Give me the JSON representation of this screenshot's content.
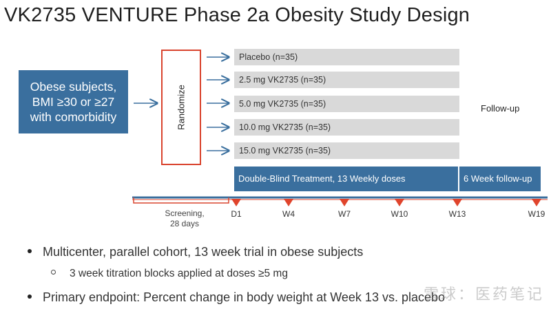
{
  "title": "VK2735 VENTURE Phase 2a Obesity Study Design",
  "subjects": {
    "line1": "Obese subjects,",
    "line2": "BMI ≥30 or ≥27",
    "line3": "with comorbidity"
  },
  "randomize": "Randomize",
  "arms": [
    "Placebo (n=35)",
    "2.5 mg VK2735 (n=35)",
    "5.0 mg VK2735 (n=35)",
    "10.0 mg VK2735 (n=35)",
    "15.0 mg VK2735 (n=35)"
  ],
  "follow_up": "Follow-up",
  "phases": {
    "treatment": "Double-Blind Treatment, 13 Weekly doses",
    "follow_up": "6 Week follow-up"
  },
  "screening": {
    "line1": "Screening,",
    "line2": "28 days"
  },
  "timeline_markers": [
    "D1",
    "W4",
    "W7",
    "W10",
    "W13",
    "W19"
  ],
  "bullets": [
    "Multicenter, parallel cohort, 13 week trial in obese subjects",
    "Primary endpoint: Percent change in body weight at Week 13 vs. placebo"
  ],
  "sub_bullet": "3 week titration blocks applied at doses ≥5 mg",
  "watermark": "雪球：医药笔记",
  "colors": {
    "blue": "#3a6f9e",
    "red": "#d9432d",
    "gray": "#d9d9d9"
  }
}
